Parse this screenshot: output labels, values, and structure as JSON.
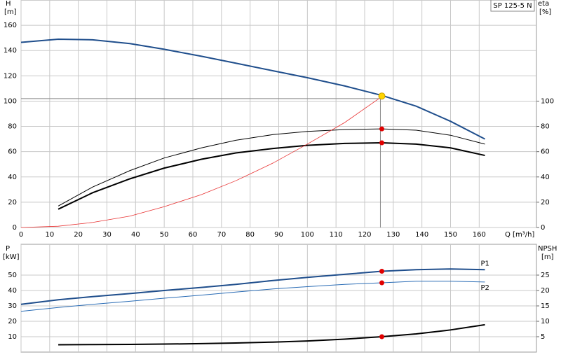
{
  "chart_data": [
    {
      "type": "line",
      "title": "SP 125-5 N",
      "xlim": [
        0,
        180
      ],
      "xticks": [
        0,
        10,
        20,
        30,
        40,
        50,
        60,
        70,
        80,
        90,
        100,
        110,
        120,
        130,
        140,
        150,
        160
      ],
      "xlabel": "Q [m³/h]",
      "ylim": [
        0,
        180
      ],
      "yticks": [
        0,
        20,
        40,
        60,
        80,
        100,
        120,
        140,
        160
      ],
      "ylabel": "H",
      "yunit": "[m]",
      "y2lim": [
        0,
        180
      ],
      "y2ticks": [
        0,
        20,
        40,
        60,
        80,
        100
      ],
      "y2label": "eta",
      "y2unit": "[%]",
      "grid": true,
      "show_xtick_labels": true,
      "series": [
        {
          "color": "#1f4e8c",
          "width": 2,
          "x": [
            0,
            13,
            25,
            38,
            50,
            63,
            75,
            88,
            100,
            113,
            126,
            138,
            150,
            162
          ],
          "values": [
            146.5,
            149,
            148.5,
            145.5,
            141,
            135.5,
            130,
            124,
            118.5,
            112,
            104.5,
            96,
            84,
            70
          ]
        },
        {
          "color": "#000000",
          "width": 1,
          "axis": "y2",
          "x": [
            13,
            25,
            38,
            50,
            63,
            75,
            88,
            100,
            113,
            126,
            138,
            150,
            162
          ],
          "values": [
            17,
            32,
            45,
            55,
            63,
            69,
            73.5,
            76,
            77.5,
            78,
            77,
            73,
            66
          ]
        },
        {
          "color": "#000000",
          "width": 2,
          "axis": "y2",
          "x": [
            13,
            25,
            38,
            50,
            63,
            75,
            88,
            100,
            113,
            126,
            138,
            150,
            162
          ],
          "values": [
            14.5,
            27.5,
            38.5,
            47,
            54,
            59,
            62.5,
            65,
            66.5,
            67,
            66,
            63,
            57
          ]
        },
        {
          "color": "#e83030",
          "width": 0.8,
          "x": [
            0,
            13,
            25,
            38,
            50,
            63,
            75,
            88,
            100,
            113,
            125
          ],
          "values": [
            0,
            1,
            4,
            9,
            16.5,
            26,
            37,
            51,
            66,
            83,
            102
          ]
        }
      ],
      "guides": {
        "x": 125.5,
        "y": 102
      },
      "markers": [
        {
          "x": 126,
          "y": 104,
          "color": "#ffd400"
        },
        {
          "x": 126,
          "y": 78,
          "axis": "y2",
          "color": "#e00000"
        },
        {
          "x": 126,
          "y": 67,
          "axis": "y2",
          "color": "#e00000"
        }
      ]
    },
    {
      "type": "line",
      "xlim": [
        0,
        180
      ],
      "xticks": [
        0,
        10,
        20,
        30,
        40,
        50,
        60,
        70,
        80,
        90,
        100,
        110,
        120,
        130,
        140,
        150,
        160
      ],
      "ylim": [
        0,
        70
      ],
      "yticks": [
        10,
        20,
        30,
        40,
        50
      ],
      "ylabel": "P",
      "yunit": "[kW]",
      "y2lim": [
        0,
        35
      ],
      "y2ticks": [
        5,
        10,
        15,
        20,
        25
      ],
      "y2label": "NPSH",
      "y2unit": "[m]",
      "grid": true,
      "show_xtick_labels": false,
      "series": [
        {
          "name": "P1",
          "color": "#1f4e8c",
          "width": 2,
          "x": [
            0,
            13,
            25,
            38,
            50,
            63,
            75,
            88,
            100,
            113,
            126,
            138,
            150,
            162
          ],
          "values": [
            31,
            34,
            36,
            38,
            40,
            42,
            44,
            46.5,
            48.5,
            50.5,
            52.5,
            53.5,
            54,
            53.5
          ]
        },
        {
          "name": "P2",
          "color": "#2a6cb5",
          "width": 1,
          "x": [
            0,
            13,
            25,
            38,
            50,
            63,
            75,
            88,
            100,
            113,
            126,
            138,
            150,
            162
          ],
          "values": [
            26.5,
            29,
            31,
            33,
            35,
            37,
            39,
            41,
            42.5,
            44,
            45,
            46,
            46,
            45.5
          ]
        },
        {
          "color": "#000000",
          "width": 2,
          "axis": "y2",
          "x": [
            13,
            25,
            38,
            50,
            63,
            75,
            88,
            100,
            113,
            126,
            138,
            150,
            162
          ],
          "values": [
            2.4,
            2.45,
            2.5,
            2.6,
            2.75,
            2.95,
            3.25,
            3.6,
            4.2,
            5,
            5.9,
            7.2,
            8.9
          ]
        }
      ],
      "markers": [
        {
          "x": 126,
          "y": 52.5,
          "color": "#e00000"
        },
        {
          "x": 126,
          "y": 45,
          "color": "#e00000"
        },
        {
          "x": 126,
          "y": 5,
          "axis": "y2",
          "color": "#e00000"
        }
      ]
    }
  ]
}
